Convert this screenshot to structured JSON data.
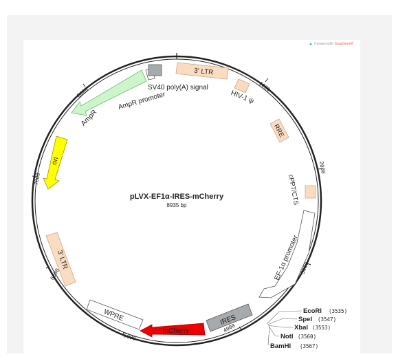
{
  "credit": {
    "prefix": "Created with ",
    "brand": "SnapGene®"
  },
  "plasmid": {
    "name": "pLVX-EF1α-IRES-mCherry",
    "size_label": "8935 bp"
  },
  "ticks": [
    "1000",
    "2000",
    "3000",
    "4000",
    "5000",
    "6000",
    "7000",
    "8000"
  ],
  "features": {
    "ltr3_top": {
      "label": "3' LTR",
      "color": "#fbdcc1"
    },
    "hiv_psi": {
      "label": "HIV-1 ψ",
      "color": "#fbdcc1"
    },
    "rre": {
      "label": "RRE",
      "color": "#fbdcc1"
    },
    "cppt": {
      "label": "cPPT/CTS",
      "color": "#fbdcc1"
    },
    "ef1a": {
      "label": "EF-1α promoter",
      "color": "#ffffff"
    },
    "ires": {
      "label": "IRES",
      "color": "#a7aaad"
    },
    "mcherry": {
      "label": "mCherry",
      "color": "#ee0000"
    },
    "wpre": {
      "label": "WPRE",
      "color": "#ffffff"
    },
    "ltr3_left": {
      "label": "3' LTR",
      "color": "#fbdcc1"
    },
    "ori": {
      "label": "ori",
      "color": "#ffff00"
    },
    "ampr": {
      "label": "AmpR",
      "color": "#ccf5cc"
    },
    "ampr_prom": {
      "label": "AmpR promoter",
      "color": "#ffffff"
    },
    "sv40": {
      "label": "SV40 poly(A) signal",
      "color": "#a7aaad"
    }
  },
  "sites": [
    {
      "name": "EcoRI",
      "pos": "(3535)"
    },
    {
      "name": "SpeI",
      "pos": "(3547)"
    },
    {
      "name": "XbaI",
      "pos": "(3553)"
    },
    {
      "name": "NotI",
      "pos": "(3560)"
    },
    {
      "name": "BamHI",
      "pos": "(3567)"
    }
  ]
}
